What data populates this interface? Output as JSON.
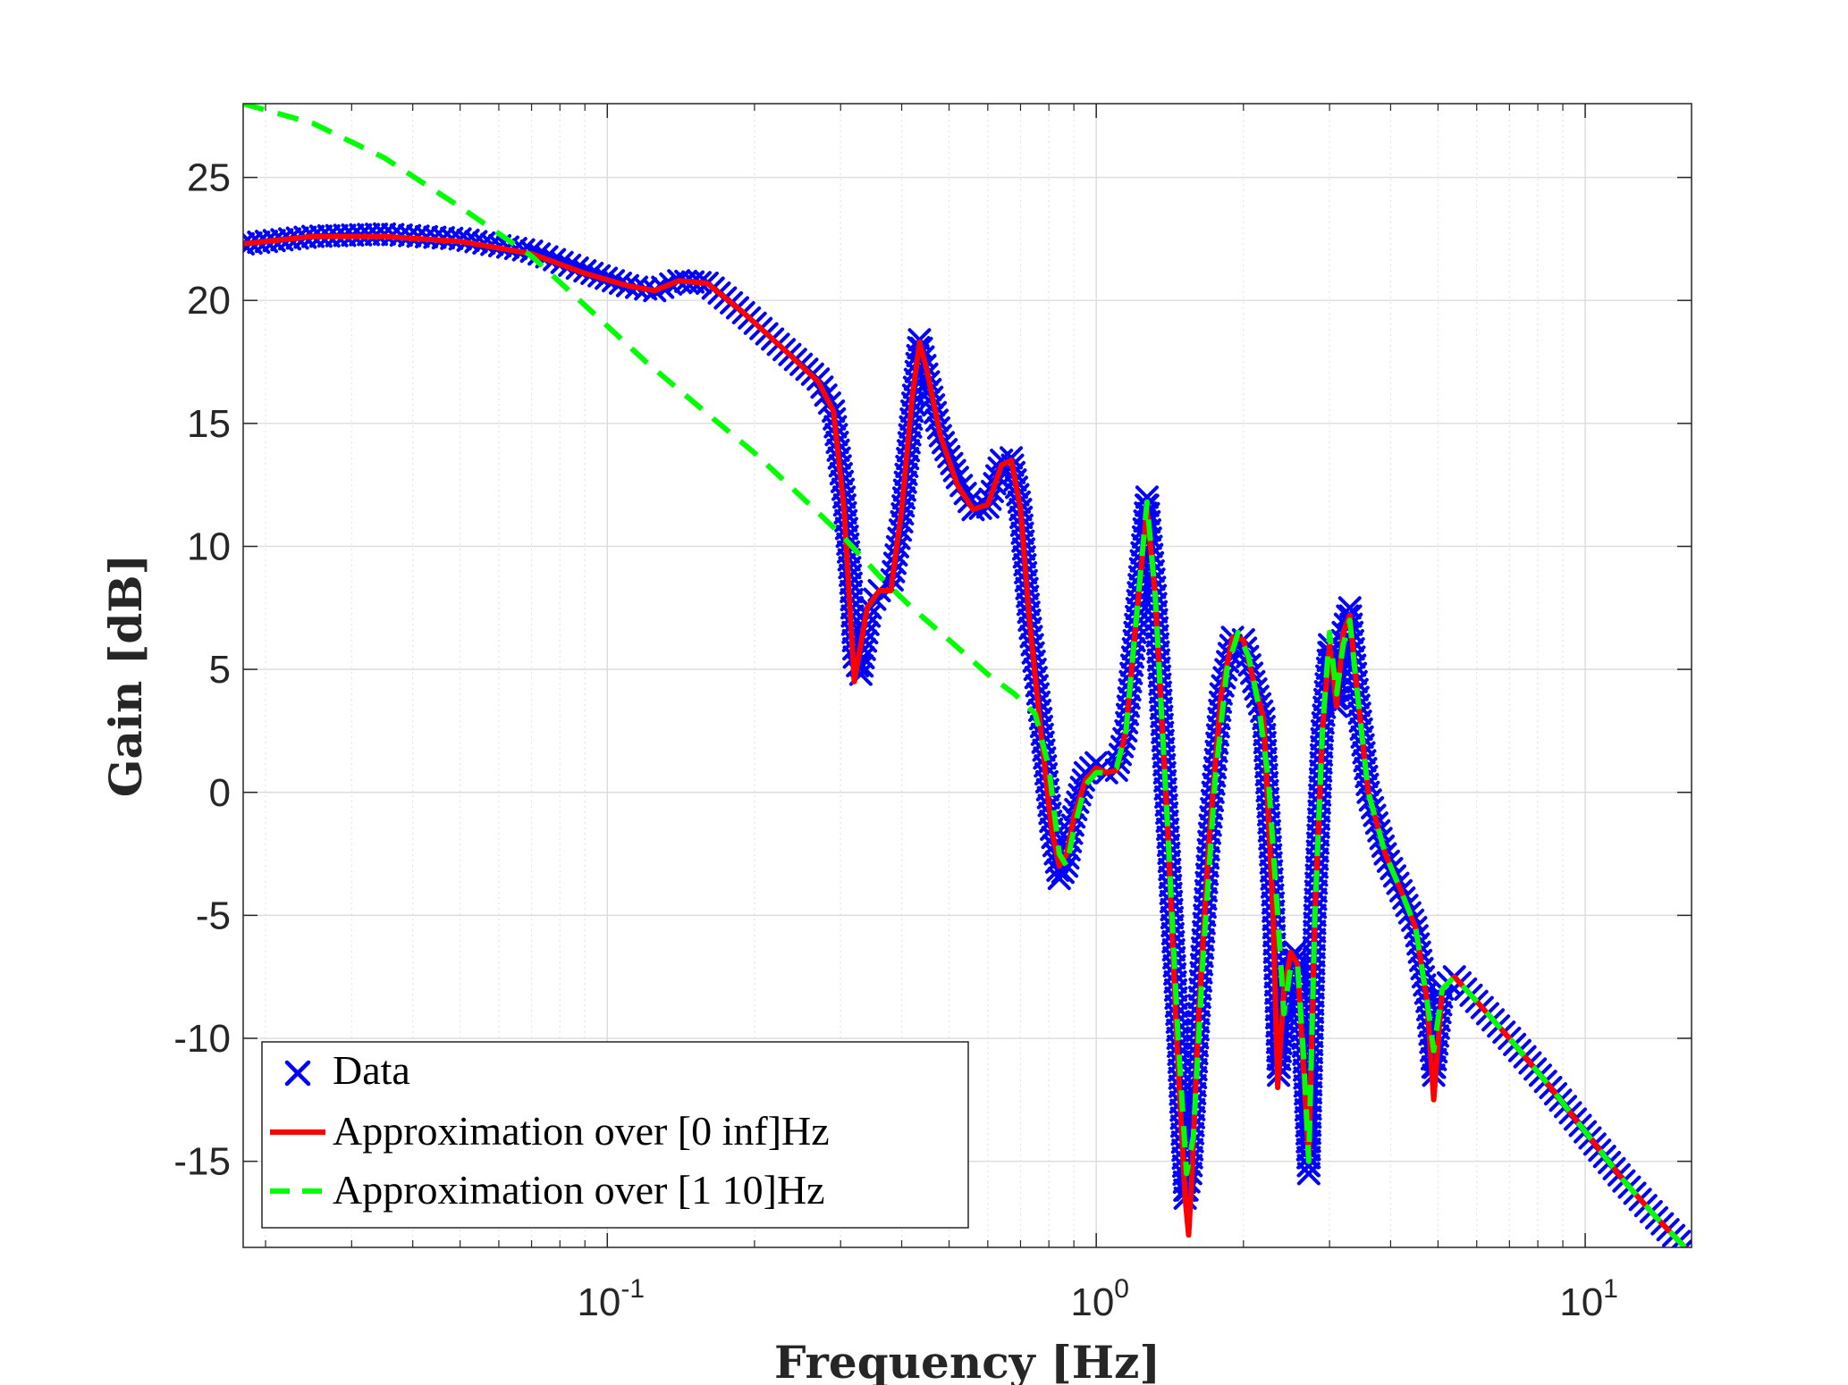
{
  "chart_data": {
    "type": "line",
    "title": "",
    "xlabel": "Frequency [Hz]",
    "ylabel": "Gain [dB]",
    "xscale": "log",
    "xlim": [
      0.018,
      16.5
    ],
    "ylim": [
      -18.5,
      28
    ],
    "grid": true,
    "legend_position": "bottom-left",
    "x_ticks": [
      {
        "value": 0.1,
        "label": "10^-1"
      },
      {
        "value": 1,
        "label": "10^0"
      },
      {
        "value": 10,
        "label": "10^1"
      }
    ],
    "x_tick_labels": [
      {
        "base": "10",
        "exp": "-1"
      },
      {
        "base": "10",
        "exp": "0"
      },
      {
        "base": "10",
        "exp": "1"
      }
    ],
    "y_ticks": [
      -15,
      -10,
      -5,
      0,
      5,
      10,
      15,
      20,
      25
    ],
    "y_tick_labels": [
      "-15",
      "-10",
      "-5",
      "0",
      "5",
      "10",
      "15",
      "20",
      "25"
    ],
    "series": [
      {
        "name": "Data",
        "style": "markers-x",
        "color": "#0000ff",
        "points": [
          [
            0.018,
            22.3
          ],
          [
            0.025,
            22.6
          ],
          [
            0.035,
            22.7
          ],
          [
            0.05,
            22.5
          ],
          [
            0.07,
            22.0
          ],
          [
            0.09,
            21.2
          ],
          [
            0.11,
            20.6
          ],
          [
            0.125,
            20.4
          ],
          [
            0.14,
            20.8
          ],
          [
            0.16,
            20.7
          ],
          [
            0.19,
            19.5
          ],
          [
            0.23,
            18.0
          ],
          [
            0.27,
            16.8
          ],
          [
            0.29,
            15.5
          ],
          [
            0.305,
            12.0
          ],
          [
            0.315,
            8.5
          ],
          [
            0.32,
            5.5
          ],
          [
            0.33,
            4.8
          ],
          [
            0.345,
            7.5
          ],
          [
            0.36,
            8.2
          ],
          [
            0.38,
            8.3
          ],
          [
            0.4,
            11.0
          ],
          [
            0.42,
            15.5
          ],
          [
            0.435,
            18.4
          ],
          [
            0.45,
            17.0
          ],
          [
            0.48,
            14.5
          ],
          [
            0.52,
            12.8
          ],
          [
            0.56,
            11.5
          ],
          [
            0.6,
            11.6
          ],
          [
            0.64,
            13.5
          ],
          [
            0.67,
            13.6
          ],
          [
            0.7,
            11.5
          ],
          [
            0.73,
            7.0
          ],
          [
            0.77,
            3.0
          ],
          [
            0.81,
            -1.5
          ],
          [
            0.84,
            -3.5
          ],
          [
            0.87,
            -3.0
          ],
          [
            0.9,
            -1.0
          ],
          [
            0.95,
            0.8
          ],
          [
            1.0,
            1.2
          ],
          [
            1.05,
            0.8
          ],
          [
            1.1,
            0.9
          ],
          [
            1.15,
            2.5
          ],
          [
            1.2,
            6.5
          ],
          [
            1.27,
            12.0
          ],
          [
            1.32,
            8.0
          ],
          [
            1.4,
            -1.5
          ],
          [
            1.47,
            -10.0
          ],
          [
            1.52,
            -16.5
          ],
          [
            1.56,
            -15.5
          ],
          [
            1.62,
            -9.0
          ],
          [
            1.7,
            -2.0
          ],
          [
            1.8,
            4.0
          ],
          [
            1.9,
            6.3
          ],
          [
            2.0,
            6.2
          ],
          [
            2.1,
            4.5
          ],
          [
            2.2,
            3.0
          ],
          [
            2.3,
            -4.5
          ],
          [
            2.36,
            -11.5
          ],
          [
            2.45,
            -7.0
          ],
          [
            2.55,
            -6.5
          ],
          [
            2.65,
            -10.0
          ],
          [
            2.72,
            -15.5
          ],
          [
            2.8,
            -5.0
          ],
          [
            2.9,
            2.5
          ],
          [
            3.0,
            6.0
          ],
          [
            3.1,
            3.5
          ],
          [
            3.2,
            6.5
          ],
          [
            3.3,
            7.5
          ],
          [
            3.4,
            4.5
          ],
          [
            3.6,
            0.0
          ],
          [
            3.9,
            -2.5
          ],
          [
            4.2,
            -4.0
          ],
          [
            4.5,
            -5.5
          ],
          [
            4.75,
            -8.5
          ],
          [
            4.9,
            -11.5
          ],
          [
            5.1,
            -8.0
          ],
          [
            5.4,
            -7.5
          ],
          [
            6.0,
            -8.5
          ],
          [
            7.0,
            -10.0
          ],
          [
            8.5,
            -12.0
          ],
          [
            10.0,
            -13.8
          ],
          [
            12.0,
            -15.8
          ],
          [
            14.0,
            -17.3
          ],
          [
            16.0,
            -18.5
          ]
        ]
      },
      {
        "name": "Approximation over [0 inf]Hz",
        "style": "solid",
        "color": "#ff0000",
        "points": [
          [
            0.018,
            22.3
          ],
          [
            0.025,
            22.6
          ],
          [
            0.035,
            22.6
          ],
          [
            0.05,
            22.4
          ],
          [
            0.07,
            21.9
          ],
          [
            0.09,
            21.1
          ],
          [
            0.11,
            20.6
          ],
          [
            0.125,
            20.4
          ],
          [
            0.14,
            20.8
          ],
          [
            0.16,
            20.7
          ],
          [
            0.19,
            19.5
          ],
          [
            0.23,
            18.0
          ],
          [
            0.27,
            16.7
          ],
          [
            0.29,
            15.5
          ],
          [
            0.305,
            11.5
          ],
          [
            0.32,
            4.5
          ],
          [
            0.34,
            7.5
          ],
          [
            0.36,
            8.2
          ],
          [
            0.38,
            8.2
          ],
          [
            0.4,
            11.5
          ],
          [
            0.42,
            16.0
          ],
          [
            0.435,
            18.3
          ],
          [
            0.45,
            17.2
          ],
          [
            0.48,
            14.5
          ],
          [
            0.52,
            12.5
          ],
          [
            0.56,
            11.5
          ],
          [
            0.6,
            11.7
          ],
          [
            0.64,
            13.3
          ],
          [
            0.67,
            13.5
          ],
          [
            0.7,
            11.5
          ],
          [
            0.73,
            7.0
          ],
          [
            0.77,
            2.5
          ],
          [
            0.81,
            -1.5
          ],
          [
            0.84,
            -3.0
          ],
          [
            0.87,
            -2.5
          ],
          [
            0.9,
            -1.0
          ],
          [
            0.95,
            0.5
          ],
          [
            1.0,
            1.0
          ],
          [
            1.05,
            0.8
          ],
          [
            1.1,
            0.9
          ],
          [
            1.15,
            2.5
          ],
          [
            1.2,
            6.5
          ],
          [
            1.27,
            11.5
          ],
          [
            1.32,
            8.0
          ],
          [
            1.4,
            -1.5
          ],
          [
            1.46,
            -10.0
          ],
          [
            1.52,
            -16.5
          ],
          [
            1.545,
            -18.0
          ],
          [
            1.57,
            -15.5
          ],
          [
            1.62,
            -9.0
          ],
          [
            1.7,
            -2.0
          ],
          [
            1.8,
            4.0
          ],
          [
            1.9,
            6.3
          ],
          [
            2.0,
            6.2
          ],
          [
            2.1,
            4.5
          ],
          [
            2.2,
            3.0
          ],
          [
            2.3,
            -5.0
          ],
          [
            2.35,
            -12.0
          ],
          [
            2.42,
            -8.0
          ],
          [
            2.5,
            -6.5
          ],
          [
            2.58,
            -7.0
          ],
          [
            2.66,
            -11.5
          ],
          [
            2.72,
            -15.0
          ],
          [
            2.8,
            -5.0
          ],
          [
            2.9,
            2.5
          ],
          [
            3.0,
            6.0
          ],
          [
            3.1,
            3.5
          ],
          [
            3.2,
            6.5
          ],
          [
            3.3,
            7.2
          ],
          [
            3.4,
            4.5
          ],
          [
            3.6,
            0.0
          ],
          [
            3.9,
            -2.5
          ],
          [
            4.2,
            -4.0
          ],
          [
            4.5,
            -5.5
          ],
          [
            4.75,
            -8.5
          ],
          [
            4.9,
            -12.5
          ],
          [
            5.1,
            -8.0
          ],
          [
            5.4,
            -7.5
          ],
          [
            6.0,
            -8.5
          ],
          [
            7.0,
            -10.0
          ],
          [
            8.5,
            -12.0
          ],
          [
            10.0,
            -13.8
          ],
          [
            12.0,
            -15.8
          ],
          [
            14.0,
            -17.3
          ],
          [
            16.0,
            -18.5
          ]
        ]
      },
      {
        "name": "Approximation over [1 10]Hz",
        "style": "dashed",
        "color": "#00ff00",
        "points": [
          [
            0.018,
            28.0
          ],
          [
            0.025,
            27.2
          ],
          [
            0.035,
            25.8
          ],
          [
            0.05,
            23.8
          ],
          [
            0.07,
            21.8
          ],
          [
            0.09,
            19.8
          ],
          [
            0.12,
            17.5
          ],
          [
            0.16,
            15.4
          ],
          [
            0.2,
            13.8
          ],
          [
            0.25,
            12.0
          ],
          [
            0.3,
            10.5
          ],
          [
            0.36,
            8.8
          ],
          [
            0.42,
            7.5
          ],
          [
            0.5,
            6.2
          ],
          [
            0.6,
            4.8
          ],
          [
            0.68,
            4.0
          ],
          [
            0.75,
            3.2
          ],
          [
            0.8,
            1.0
          ],
          [
            0.84,
            -2.5
          ],
          [
            0.87,
            -3.0
          ],
          [
            0.9,
            -1.5
          ],
          [
            0.95,
            0.3
          ],
          [
            1.0,
            0.8
          ],
          [
            1.05,
            0.8
          ],
          [
            1.1,
            1.0
          ],
          [
            1.15,
            2.5
          ],
          [
            1.2,
            6.5
          ],
          [
            1.27,
            11.8
          ],
          [
            1.32,
            8.0
          ],
          [
            1.4,
            -1.5
          ],
          [
            1.47,
            -10.0
          ],
          [
            1.53,
            -15.5
          ],
          [
            1.58,
            -14.0
          ],
          [
            1.65,
            -7.0
          ],
          [
            1.75,
            0.5
          ],
          [
            1.85,
            5.0
          ],
          [
            1.95,
            6.5
          ],
          [
            2.05,
            5.5
          ],
          [
            2.15,
            3.5
          ],
          [
            2.25,
            0.5
          ],
          [
            2.35,
            -5.0
          ],
          [
            2.42,
            -9.0
          ],
          [
            2.5,
            -7.0
          ],
          [
            2.58,
            -7.0
          ],
          [
            2.66,
            -11.0
          ],
          [
            2.72,
            -15.0
          ],
          [
            2.8,
            -5.0
          ],
          [
            2.9,
            2.5
          ],
          [
            3.0,
            6.5
          ],
          [
            3.1,
            4.0
          ],
          [
            3.2,
            6.0
          ],
          [
            3.3,
            7.0
          ],
          [
            3.4,
            4.5
          ],
          [
            3.6,
            0.0
          ],
          [
            3.9,
            -2.5
          ],
          [
            4.2,
            -4.0
          ],
          [
            4.5,
            -5.5
          ],
          [
            4.75,
            -8.5
          ],
          [
            4.9,
            -10.5
          ],
          [
            5.1,
            -8.0
          ],
          [
            5.4,
            -7.5
          ],
          [
            6.0,
            -8.5
          ],
          [
            7.0,
            -10.0
          ],
          [
            8.5,
            -12.0
          ],
          [
            10.0,
            -13.8
          ],
          [
            12.0,
            -15.8
          ],
          [
            14.0,
            -17.3
          ],
          [
            16.0,
            -18.5
          ]
        ]
      }
    ]
  }
}
